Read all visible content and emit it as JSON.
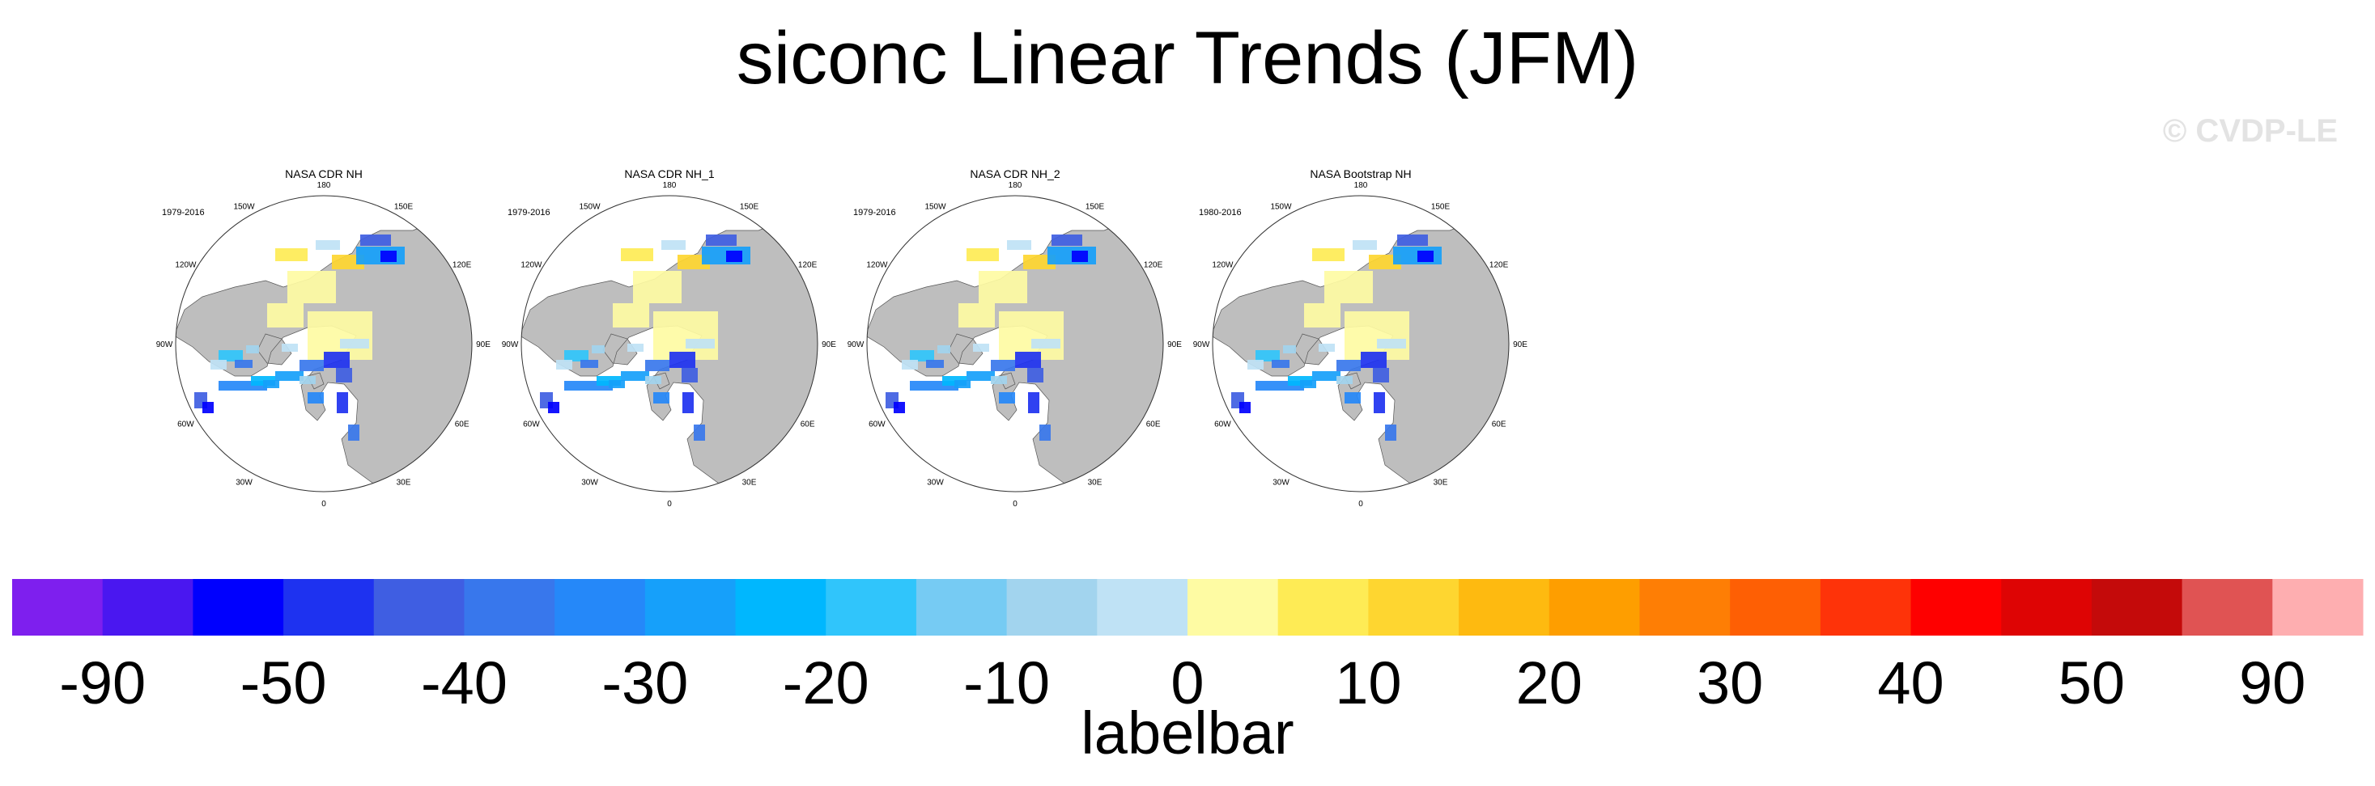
{
  "title": "siconc Linear Trends (JFM)",
  "watermark": "© CVDP-LE",
  "chart_data": {
    "type": "heatmap",
    "projection": "north polar stereographic",
    "panels": [
      {
        "title": "NASA CDR NH",
        "period": "1979-2016"
      },
      {
        "title": "NASA CDR NH_1",
        "period": "1979-2016"
      },
      {
        "title": "NASA CDR NH_2",
        "period": "1979-2016"
      },
      {
        "title": "NASA Bootstrap NH",
        "period": "1980-2016"
      }
    ],
    "lon_labels": [
      "180",
      "150E",
      "120E",
      "90E",
      "60E",
      "30E",
      "0",
      "30W",
      "60W",
      "90W",
      "120W",
      "150W"
    ],
    "colorbar": {
      "title": "labelbar",
      "tick_labels": [
        "-90",
        "-50",
        "-40",
        "-30",
        "-20",
        "-10",
        "0",
        "10",
        "20",
        "30",
        "40",
        "50",
        "90"
      ],
      "colors": [
        "#7e1fee",
        "#4a17f0",
        "#0000fe",
        "#1e32f0",
        "#3f5ee2",
        "#3877ec",
        "#2588f9",
        "#16a0fa",
        "#00b7fe",
        "#30c5fb",
        "#76cbf3",
        "#a2d4ee",
        "#bfe2f5",
        "#fefba3",
        "#feeb55",
        "#fed630",
        "#feba10",
        "#fe9e00",
        "#fe7e05",
        "#fe5f04",
        "#fe3309",
        "#fe0000",
        "#de0404",
        "#c40a0a",
        "#e05353",
        "#feaeb0"
      ]
    },
    "colors": {
      "land": "#bebebe",
      "ocean_nodata": "#ffffff"
    }
  }
}
